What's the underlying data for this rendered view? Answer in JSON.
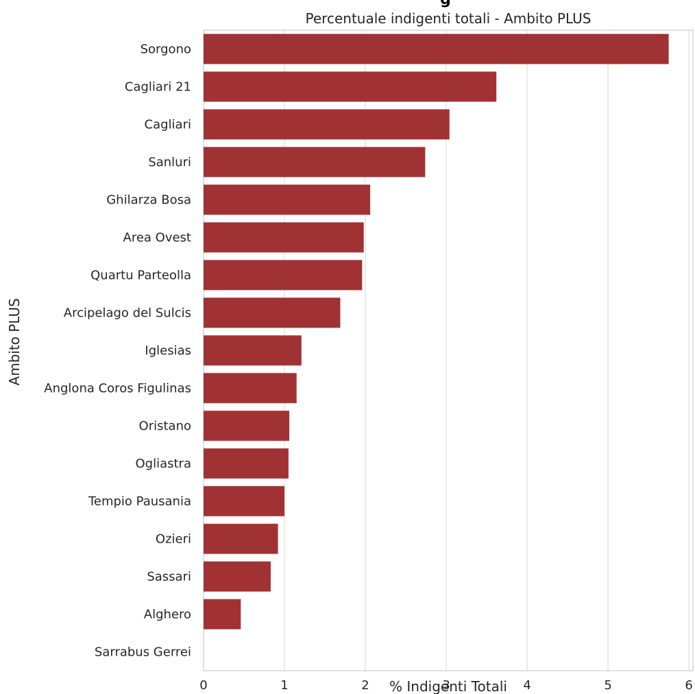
{
  "suptitle_fragment": "g",
  "chart_data": {
    "type": "bar",
    "orientation": "horizontal",
    "title": "Percentuale indigenti totali - Ambito PLUS",
    "xlabel": "% Indigenti Totali",
    "ylabel": "Ambito PLUS",
    "xlim": [
      0,
      6.05
    ],
    "xticks": [
      "0",
      "1",
      "2",
      "3",
      "4",
      "5",
      "6"
    ],
    "grid": "vertical",
    "bar_color": "#a03234",
    "categories": [
      "Sorgono",
      "Cagliari 21",
      "Cagliari",
      "Sanluri",
      "Ghilarza Bosa",
      "Area Ovest",
      "Quartu Parteolla",
      "Arcipelago del Sulcis",
      "Iglesias",
      "Anglona Coros Figulinas",
      "Oristano",
      "Ogliastra",
      "Tempio Pausania",
      "Ozieri",
      "Sassari",
      "Alghero",
      "Sarrabus Gerrei"
    ],
    "values": [
      5.75,
      3.62,
      3.04,
      2.74,
      2.06,
      1.98,
      1.96,
      1.69,
      1.21,
      1.15,
      1.06,
      1.05,
      1.0,
      0.92,
      0.83,
      0.46,
      0.0
    ]
  }
}
